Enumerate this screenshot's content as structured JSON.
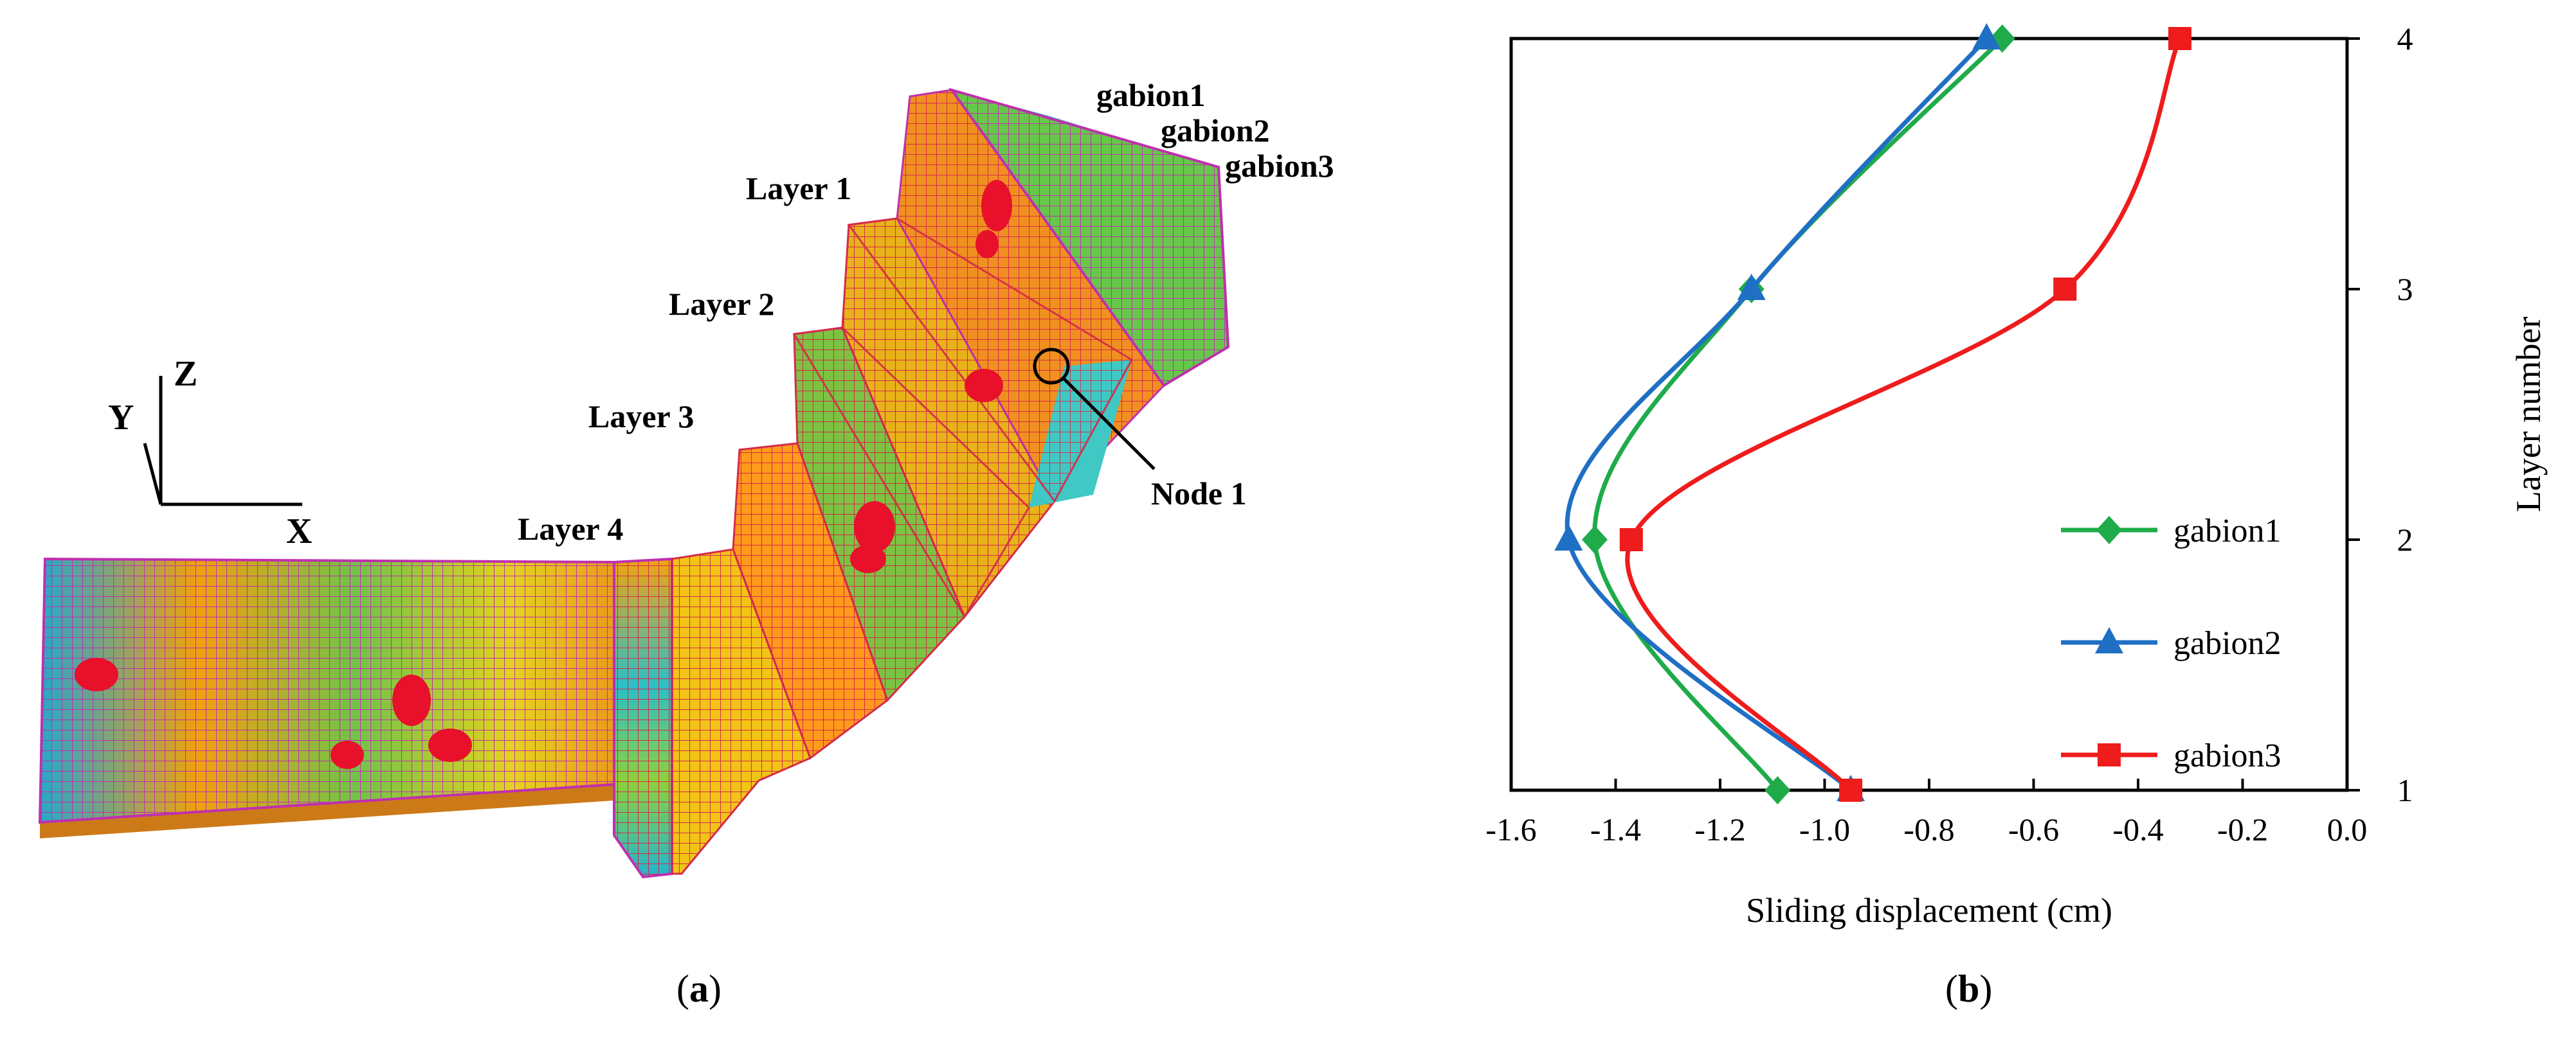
{
  "panel_a": {
    "layer_labels": [
      "Layer 1",
      "Layer 2",
      "Layer 3",
      "Layer 4"
    ],
    "gabion_labels": [
      "gabion1",
      "gabion2",
      "gabion3"
    ],
    "node_label": "Node 1",
    "axes": {
      "z": "Z",
      "y": "Y",
      "x": "X"
    },
    "caption": {
      "open": "(",
      "letter": "a",
      "close": ")"
    }
  },
  "panel_b": {
    "caption": {
      "open": "(",
      "letter": "b",
      "close": ")"
    }
  },
  "chart_data": {
    "type": "line",
    "xlabel": "Sliding displacement (cm)",
    "ylabel": "Layer number",
    "xlim": [
      -1.6,
      0.0
    ],
    "ylim": [
      1,
      4
    ],
    "x_ticks": [
      "-1.6",
      "-1.4",
      "-1.2",
      "-1.0",
      "-0.8",
      "-0.6",
      "-0.4",
      "-0.2",
      "0.0"
    ],
    "y_ticks": [
      "1",
      "2",
      "3",
      "4"
    ],
    "legend_position": "lower-right",
    "grid": false,
    "series": [
      {
        "name": "gabion1",
        "color": "#1fab4a",
        "marker": "diamond",
        "points": [
          {
            "layer": 1,
            "x": -1.09
          },
          {
            "layer": 2,
            "x": -1.44
          },
          {
            "layer": 3,
            "x": -1.14
          },
          {
            "layer": 4,
            "x": -0.66
          }
        ]
      },
      {
        "name": "gabion2",
        "color": "#1f6fc4",
        "marker": "triangle",
        "points": [
          {
            "layer": 1,
            "x": -0.95
          },
          {
            "layer": 2,
            "x": -1.49
          },
          {
            "layer": 3,
            "x": -1.14
          },
          {
            "layer": 4,
            "x": -0.69
          }
        ]
      },
      {
        "name": "gabion3",
        "color": "#ee1c1c",
        "marker": "square",
        "points": [
          {
            "layer": 1,
            "x": -0.95
          },
          {
            "layer": 2,
            "x": -1.37
          },
          {
            "layer": 3,
            "x": -0.54
          },
          {
            "layer": 4,
            "x": -0.32
          }
        ]
      }
    ]
  }
}
